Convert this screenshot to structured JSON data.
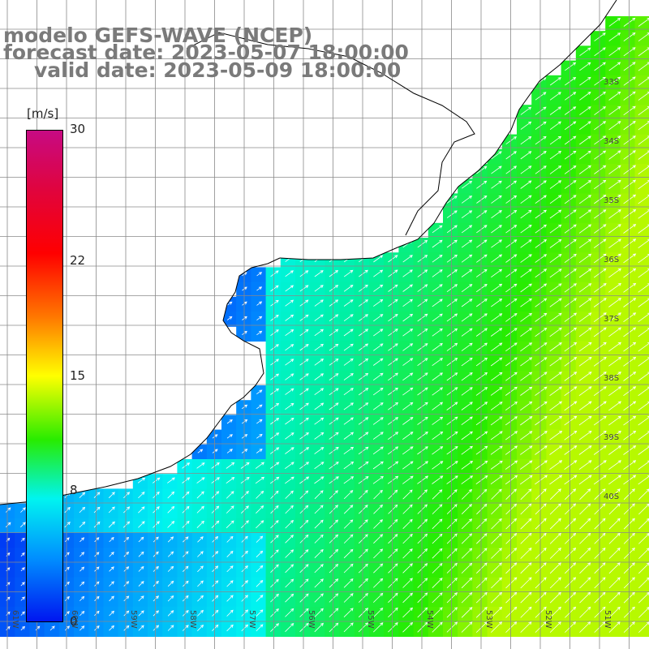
{
  "title": {
    "line1": "modelo GEFS-WAVE (NCEP)",
    "line2": "forecast date: 2023-05-07 18:00:00",
    "line3": "valid date: 2023-05-09 18:00:00"
  },
  "colorbar": {
    "unit": "[m/s]",
    "ticks": [
      {
        "label": "30",
        "value": 30
      },
      {
        "label": "22",
        "value": 22
      },
      {
        "label": "15",
        "value": 15
      },
      {
        "label": "8",
        "value": 8
      },
      {
        "label": "0",
        "value": 0
      }
    ],
    "colors_top_to_bottom": [
      "#c70a83",
      "#e0043e",
      "#ff0000",
      "#ff7800",
      "#ffff00",
      "#28ec00",
      "#00f4f0",
      "#0090ff",
      "#0016f0"
    ]
  },
  "latitude_labels": [
    "33S",
    "34S",
    "35S",
    "36S",
    "37S",
    "38S",
    "39S",
    "40S"
  ],
  "longitude_labels": [
    "61W",
    "60W",
    "59W",
    "58W",
    "57W",
    "56W",
    "55W",
    "54W",
    "53W",
    "52W",
    "51W"
  ],
  "field": {
    "variable": "wind speed",
    "direction_predominant": "toward north-east",
    "land_color": "#ffffff",
    "gridline_color": "#808080",
    "coastline_color": "#000000"
  }
}
